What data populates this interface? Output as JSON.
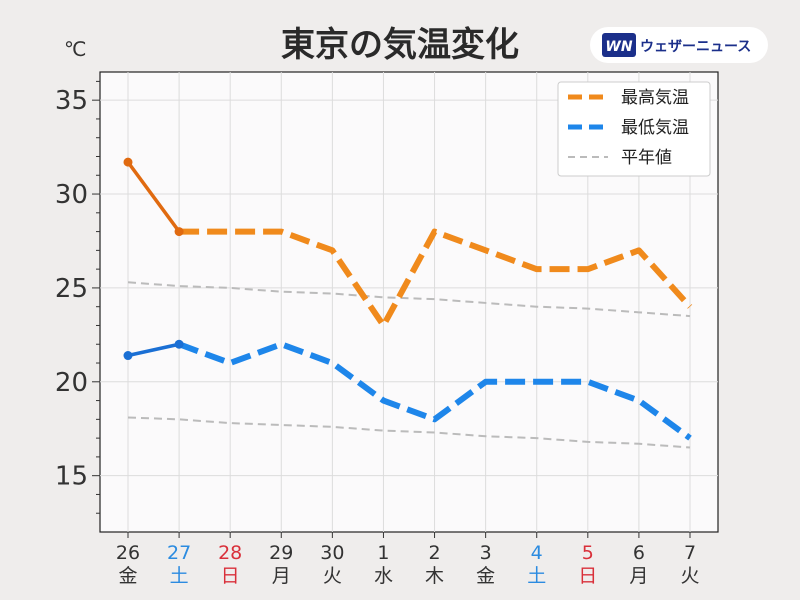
{
  "chart_data": {
    "type": "line",
    "title": "東京の気温変化",
    "unit_label": "℃",
    "brand": {
      "logo_text": "WN",
      "name": "ウェザーニュース"
    },
    "x": [
      {
        "day": "26",
        "weekday": "金",
        "color": "#333333"
      },
      {
        "day": "27",
        "weekday": "土",
        "color": "#2b8be0"
      },
      {
        "day": "28",
        "weekday": "日",
        "color": "#d9303a"
      },
      {
        "day": "29",
        "weekday": "月",
        "color": "#333333"
      },
      {
        "day": "30",
        "weekday": "火",
        "color": "#333333"
      },
      {
        "day": "1",
        "weekday": "水",
        "color": "#333333"
      },
      {
        "day": "2",
        "weekday": "木",
        "color": "#333333"
      },
      {
        "day": "3",
        "weekday": "金",
        "color": "#333333"
      },
      {
        "day": "4",
        "weekday": "土",
        "color": "#2b8be0"
      },
      {
        "day": "5",
        "weekday": "日",
        "color": "#d9303a"
      },
      {
        "day": "6",
        "weekday": "月",
        "color": "#333333"
      },
      {
        "day": "7",
        "weekday": "火",
        "color": "#333333"
      }
    ],
    "ylim": [
      12,
      36.5
    ],
    "yticks": [
      15,
      20,
      25,
      30,
      35
    ],
    "grid": true,
    "legend_position": "top-right",
    "observed_count": 2,
    "series": [
      {
        "name": "最高気温",
        "color": "#f08a1c",
        "observed_color": "#e06a10",
        "values": [
          31.7,
          28,
          28,
          28,
          27,
          23,
          28,
          27,
          26,
          26,
          27,
          24
        ]
      },
      {
        "name": "最低気温",
        "color": "#1e86ea",
        "observed_color": "#1a6fd4",
        "values": [
          21.4,
          22,
          21,
          22,
          21,
          19,
          18,
          20,
          20,
          20,
          19,
          17
        ]
      },
      {
        "name": "平年値",
        "color": "#bbbbbb",
        "values": [
          25.3,
          25.1,
          25.0,
          24.8,
          24.7,
          24.5,
          24.4,
          24.2,
          24.0,
          23.9,
          23.7,
          23.5
        ],
        "values_low": [
          18.1,
          18.0,
          17.8,
          17.7,
          17.6,
          17.4,
          17.3,
          17.1,
          17.0,
          16.8,
          16.7,
          16.5
        ]
      }
    ]
  }
}
